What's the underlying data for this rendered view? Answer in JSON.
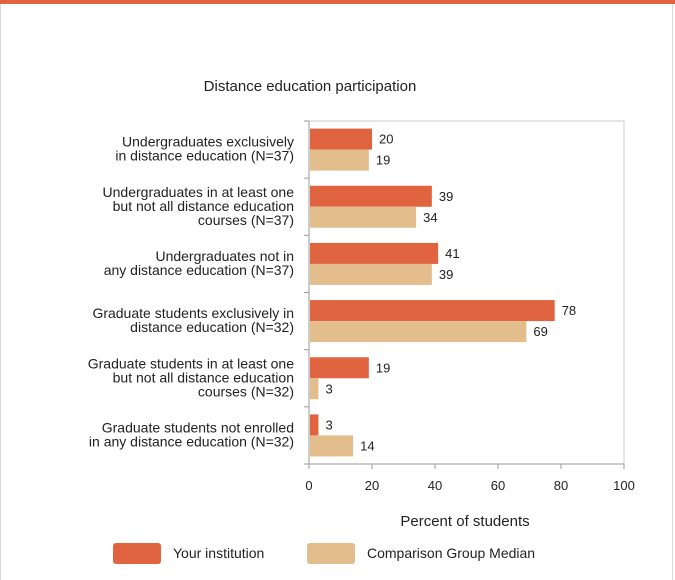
{
  "chart_data": {
    "type": "bar",
    "orientation": "horizontal",
    "title": "Distance education participation",
    "xlabel": "Percent of students",
    "ylabel": "",
    "xlim": [
      0,
      100
    ],
    "xticks": [
      0,
      20,
      40,
      60,
      80,
      100
    ],
    "grid": false,
    "legend_position": "bottom",
    "categories": [
      [
        "Undergraduates exclusively",
        "in distance education (N=37)"
      ],
      [
        "Undergraduates in at least one",
        "but not all distance education",
        "courses (N=37)"
      ],
      [
        "Undergraduates not in",
        "any distance education (N=37)"
      ],
      [
        "Graduate students exclusively in",
        "distance education (N=32)"
      ],
      [
        "Graduate students in at least one",
        "but not all distance education",
        "courses (N=32)"
      ],
      [
        "Graduate students not enrolled",
        "in any distance education (N=32)"
      ]
    ],
    "series": [
      {
        "name": "Your institution",
        "color": "#e0643f",
        "values": [
          20,
          39,
          41,
          78,
          19,
          3
        ]
      },
      {
        "name": "Comparison Group Median",
        "color": "#e3bd8c",
        "values": [
          19,
          34,
          39,
          69,
          3,
          14
        ]
      }
    ]
  }
}
